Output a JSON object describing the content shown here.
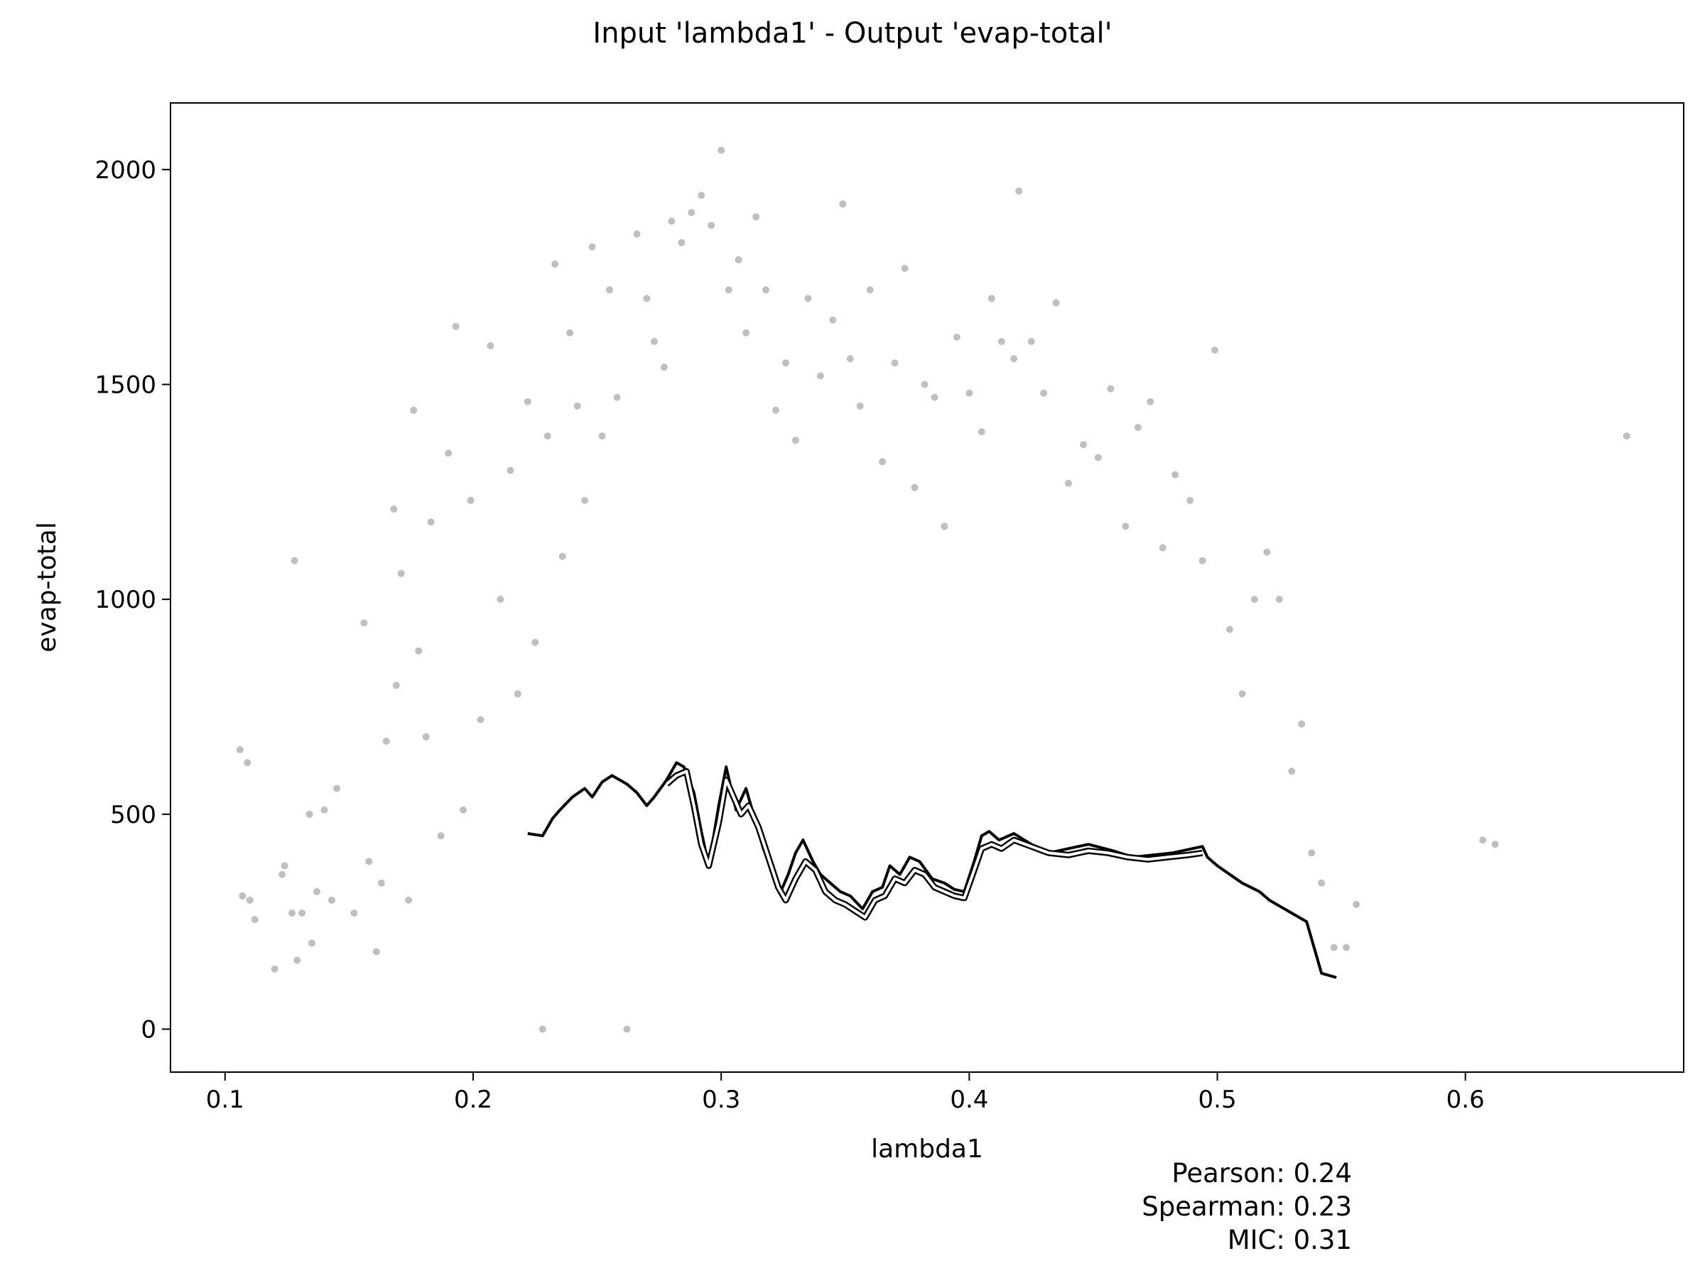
{
  "chart_data": {
    "type": "scatter",
    "title": "Input 'lambda1' - Output 'evap-total'",
    "xlabel": "lambda1",
    "ylabel": "evap-total",
    "xlim": [
      0.078,
      0.688
    ],
    "ylim": [
      -100,
      2155
    ],
    "xticks": [
      0.1,
      0.2,
      0.3,
      0.4,
      0.5,
      0.6
    ],
    "xtick_labels": [
      "0.1",
      "0.2",
      "0.3",
      "0.4",
      "0.5",
      "0.6"
    ],
    "yticks": [
      0,
      500,
      1000,
      1500,
      2000
    ],
    "ytick_labels": [
      "0",
      "500",
      "1000",
      "1500",
      "2000"
    ],
    "grid": false,
    "point_color": "#000000",
    "point_opacity": 0.25,
    "scatter_points": [
      [
        0.106,
        650
      ],
      [
        0.107,
        310
      ],
      [
        0.109,
        620
      ],
      [
        0.11,
        300
      ],
      [
        0.112,
        255
      ],
      [
        0.12,
        140
      ],
      [
        0.123,
        360
      ],
      [
        0.124,
        380
      ],
      [
        0.127,
        270
      ],
      [
        0.128,
        1090
      ],
      [
        0.129,
        160
      ],
      [
        0.131,
        270
      ],
      [
        0.134,
        500
      ],
      [
        0.135,
        200
      ],
      [
        0.137,
        320
      ],
      [
        0.14,
        510
      ],
      [
        0.143,
        300
      ],
      [
        0.145,
        560
      ],
      [
        0.152,
        270
      ],
      [
        0.156,
        945
      ],
      [
        0.158,
        390
      ],
      [
        0.161,
        180
      ],
      [
        0.163,
        340
      ],
      [
        0.165,
        670
      ],
      [
        0.168,
        1210
      ],
      [
        0.169,
        800
      ],
      [
        0.171,
        1060
      ],
      [
        0.174,
        300
      ],
      [
        0.176,
        1440
      ],
      [
        0.178,
        880
      ],
      [
        0.181,
        680
      ],
      [
        0.183,
        1180
      ],
      [
        0.187,
        450
      ],
      [
        0.19,
        1340
      ],
      [
        0.193,
        1635
      ],
      [
        0.196,
        510
      ],
      [
        0.199,
        1230
      ],
      [
        0.203,
        720
      ],
      [
        0.207,
        1590
      ],
      [
        0.211,
        1000
      ],
      [
        0.215,
        1300
      ],
      [
        0.218,
        780
      ],
      [
        0.222,
        1460
      ],
      [
        0.225,
        900
      ],
      [
        0.228,
        0
      ],
      [
        0.23,
        1380
      ],
      [
        0.233,
        1780
      ],
      [
        0.236,
        1100
      ],
      [
        0.239,
        1620
      ],
      [
        0.242,
        1450
      ],
      [
        0.245,
        1230
      ],
      [
        0.248,
        1820
      ],
      [
        0.252,
        1380
      ],
      [
        0.255,
        1720
      ],
      [
        0.258,
        1470
      ],
      [
        0.262,
        0
      ],
      [
        0.266,
        1850
      ],
      [
        0.27,
        1700
      ],
      [
        0.273,
        1600
      ],
      [
        0.277,
        1540
      ],
      [
        0.28,
        1880
      ],
      [
        0.284,
        1830
      ],
      [
        0.288,
        1900
      ],
      [
        0.292,
        1940
      ],
      [
        0.296,
        1870
      ],
      [
        0.3,
        2045
      ],
      [
        0.303,
        1720
      ],
      [
        0.307,
        1790
      ],
      [
        0.31,
        1620
      ],
      [
        0.314,
        1890
      ],
      [
        0.318,
        1720
      ],
      [
        0.322,
        1440
      ],
      [
        0.326,
        1550
      ],
      [
        0.33,
        1370
      ],
      [
        0.335,
        1700
      ],
      [
        0.34,
        1520
      ],
      [
        0.345,
        1650
      ],
      [
        0.349,
        1920
      ],
      [
        0.352,
        1560
      ],
      [
        0.356,
        1450
      ],
      [
        0.36,
        1720
      ],
      [
        0.365,
        1320
      ],
      [
        0.37,
        1550
      ],
      [
        0.374,
        1770
      ],
      [
        0.378,
        1260
      ],
      [
        0.382,
        1500
      ],
      [
        0.386,
        1470
      ],
      [
        0.39,
        1170
      ],
      [
        0.395,
        1610
      ],
      [
        0.4,
        1480
      ],
      [
        0.405,
        1390
      ],
      [
        0.409,
        1700
      ],
      [
        0.413,
        1600
      ],
      [
        0.418,
        1560
      ],
      [
        0.42,
        1950
      ],
      [
        0.425,
        1600
      ],
      [
        0.43,
        1480
      ],
      [
        0.435,
        1690
      ],
      [
        0.44,
        1270
      ],
      [
        0.446,
        1360
      ],
      [
        0.452,
        1330
      ],
      [
        0.457,
        1490
      ],
      [
        0.463,
        1170
      ],
      [
        0.468,
        1400
      ],
      [
        0.473,
        1460
      ],
      [
        0.478,
        1120
      ],
      [
        0.483,
        1290
      ],
      [
        0.489,
        1230
      ],
      [
        0.494,
        1090
      ],
      [
        0.499,
        1580
      ],
      [
        0.505,
        930
      ],
      [
        0.51,
        780
      ],
      [
        0.515,
        1000
      ],
      [
        0.52,
        1110
      ],
      [
        0.525,
        1000
      ],
      [
        0.53,
        600
      ],
      [
        0.534,
        710
      ],
      [
        0.538,
        410
      ],
      [
        0.542,
        340
      ],
      [
        0.547,
        190
      ],
      [
        0.552,
        190
      ],
      [
        0.556,
        290
      ],
      [
        0.607,
        440
      ],
      [
        0.612,
        430
      ],
      [
        0.665,
        1380
      ]
    ],
    "curves": [
      {
        "style": "black line with white outline",
        "x": [
          0.222,
          0.228,
          0.232,
          0.235,
          0.24,
          0.245,
          0.248,
          0.252,
          0.256,
          0.262,
          0.266,
          0.27,
          0.273,
          0.278,
          0.282,
          0.285,
          0.289,
          0.292,
          0.295,
          0.299,
          0.302,
          0.304,
          0.306,
          0.31,
          0.313,
          0.317,
          0.32,
          0.324,
          0.327,
          0.33,
          0.333,
          0.337,
          0.34,
          0.344,
          0.348,
          0.352,
          0.357,
          0.361,
          0.365,
          0.368,
          0.372,
          0.376,
          0.38,
          0.385,
          0.39,
          0.394,
          0.398,
          0.402,
          0.405,
          0.408,
          0.412,
          0.418,
          0.425,
          0.432,
          0.44,
          0.448,
          0.458,
          0.466,
          0.474,
          0.482,
          0.49,
          0.494,
          0.496,
          0.5,
          0.51,
          0.517,
          0.521,
          0.527,
          0.536,
          0.542,
          0.548
        ],
        "y": [
          455,
          450,
          490,
          510,
          540,
          560,
          540,
          575,
          590,
          570,
          550,
          520,
          540,
          580,
          620,
          610,
          550,
          460,
          380,
          520,
          610,
          560,
          510,
          560,
          500,
          420,
          380,
          320,
          360,
          410,
          440,
          390,
          360,
          340,
          320,
          310,
          280,
          320,
          330,
          380,
          360,
          400,
          390,
          350,
          340,
          325,
          320,
          390,
          450,
          460,
          440,
          455,
          430,
          410,
          420,
          430,
          415,
          400,
          405,
          410,
          420,
          425,
          400,
          380,
          340,
          320,
          300,
          280,
          250,
          130,
          120
        ]
      },
      {
        "style": "white line with black outline",
        "x": [
          0.278,
          0.282,
          0.286,
          0.289,
          0.292,
          0.295,
          0.299,
          0.302,
          0.305,
          0.308,
          0.311,
          0.315,
          0.319,
          0.323,
          0.326,
          0.33,
          0.334,
          0.338,
          0.342,
          0.346,
          0.35,
          0.354,
          0.358,
          0.362,
          0.366,
          0.37,
          0.374,
          0.378,
          0.382,
          0.386,
          0.39,
          0.394,
          0.398,
          0.402,
          0.405,
          0.409,
          0.413,
          0.418,
          0.425,
          0.432,
          0.44,
          0.448,
          0.456,
          0.464,
          0.472,
          0.48,
          0.488,
          0.494
        ],
        "y": [
          570,
          590,
          600,
          520,
          430,
          380,
          480,
          580,
          540,
          500,
          520,
          470,
          400,
          330,
          300,
          350,
          390,
          370,
          320,
          300,
          290,
          275,
          260,
          300,
          310,
          350,
          340,
          370,
          360,
          330,
          320,
          310,
          305,
          370,
          420,
          430,
          420,
          440,
          425,
          410,
          405,
          415,
          410,
          400,
          395,
          400,
          405,
          410
        ]
      }
    ],
    "annotations": [
      "Pearson: 0.24",
      "Spearman: 0.23",
      "MIC: 0.31"
    ]
  }
}
